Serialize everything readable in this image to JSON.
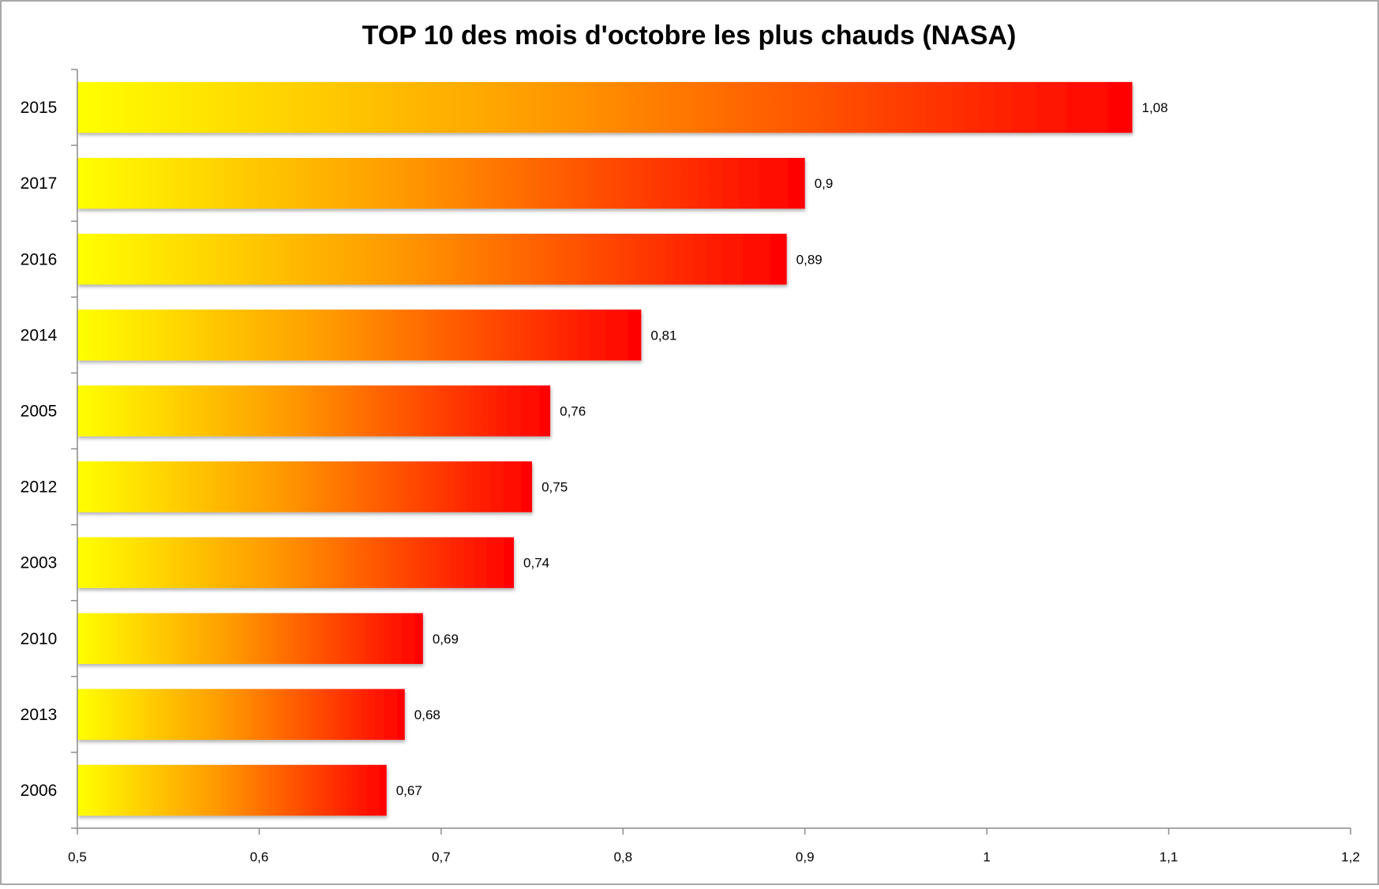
{
  "chart_data": {
    "type": "bar",
    "orientation": "horizontal",
    "title": "TOP 10 des mois d'octobre les plus chauds (NASA)",
    "xlabel": "",
    "ylabel": "",
    "categories": [
      "2015",
      "2017",
      "2016",
      "2014",
      "2005",
      "2012",
      "2003",
      "2010",
      "2013",
      "2006"
    ],
    "values": [
      1.08,
      0.9,
      0.89,
      0.81,
      0.76,
      0.75,
      0.74,
      0.69,
      0.68,
      0.67
    ],
    "data_labels": [
      "1,08",
      "0,9",
      "0,89",
      "0,81",
      "0,76",
      "0,75",
      "0,74",
      "0,69",
      "0,68",
      "0,67"
    ],
    "xlim": [
      0.5,
      1.2
    ],
    "xticks": [
      0.5,
      0.6,
      0.7,
      0.8,
      0.9,
      1.0,
      1.1,
      1.2
    ],
    "xtick_labels": [
      "0,5",
      "0,6",
      "0,7",
      "0,8",
      "0,9",
      "1",
      "1,1",
      "1,2"
    ],
    "grid": false,
    "legend": "none",
    "colors": {
      "gradient_start": "#ffff00",
      "gradient_mid": "#ff9900",
      "gradient_end": "#ff0000",
      "axis": "#8c8c8c",
      "frame": "#8c8c8c"
    }
  }
}
